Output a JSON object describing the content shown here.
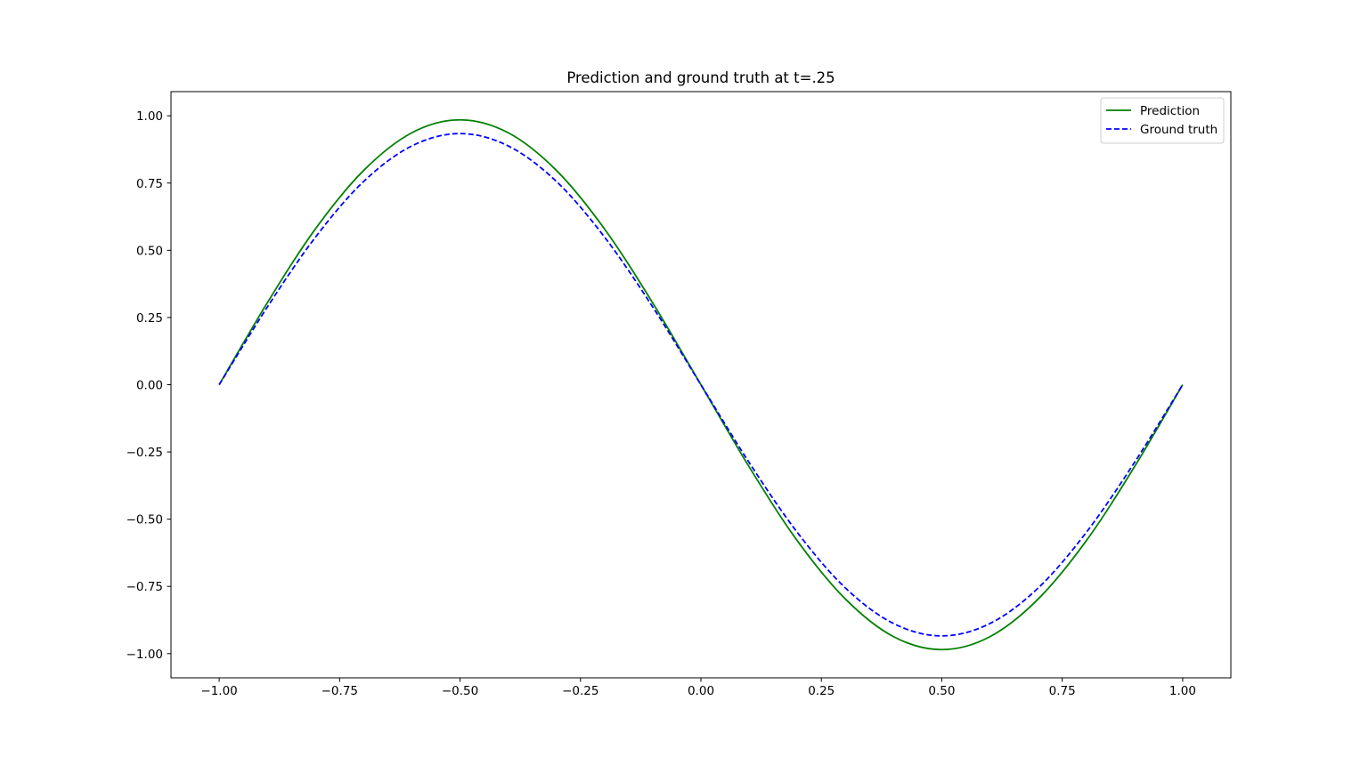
{
  "chart_data": {
    "type": "line",
    "title": "Prediction and ground truth at t=.25",
    "xlabel": "",
    "ylabel": "",
    "xlim": [
      -1.1,
      1.1
    ],
    "ylim": [
      -1.09,
      1.09
    ],
    "xticks": [
      -1.0,
      -0.75,
      -0.5,
      -0.25,
      0.0,
      0.25,
      0.5,
      0.75,
      1.0
    ],
    "xtick_labels": [
      "−1.00",
      "−0.75",
      "−0.50",
      "−0.25",
      "0.00",
      "0.25",
      "0.50",
      "0.75",
      "1.00"
    ],
    "yticks": [
      1.0,
      0.75,
      0.5,
      0.25,
      0.0,
      -0.25,
      -0.5,
      -0.75,
      -1.0
    ],
    "ytick_labels": [
      "1.00",
      "0.75",
      "0.50",
      "0.25",
      "0.00",
      "−0.25",
      "−0.50",
      "−0.75",
      "−1.00"
    ],
    "grid": false,
    "legend_position": "top-right",
    "x": [
      -1.0,
      -0.9,
      -0.8,
      -0.7,
      -0.6,
      -0.5,
      -0.4,
      -0.3,
      -0.2,
      -0.1,
      0.0,
      0.1,
      0.2,
      0.3,
      0.4,
      0.5,
      0.6,
      0.7,
      0.8,
      0.9,
      1.0
    ],
    "series": [
      {
        "name": "Prediction",
        "color": "#008000",
        "style": "solid",
        "values": [
          0.0,
          0.305,
          0.58,
          0.797,
          0.937,
          0.985,
          0.937,
          0.797,
          0.579,
          0.304,
          0.0,
          -0.305,
          -0.58,
          -0.797,
          -0.937,
          -0.985,
          -0.937,
          -0.797,
          -0.58,
          -0.305,
          0.0
        ]
      },
      {
        "name": "Ground truth",
        "color": "#0000ff",
        "style": "dashed",
        "values": [
          0.0,
          0.289,
          0.549,
          0.756,
          0.888,
          0.934,
          0.888,
          0.756,
          0.549,
          0.289,
          0.0,
          -0.289,
          -0.549,
          -0.756,
          -0.888,
          -0.934,
          -0.888,
          -0.756,
          -0.549,
          -0.289,
          0.0
        ]
      }
    ]
  }
}
